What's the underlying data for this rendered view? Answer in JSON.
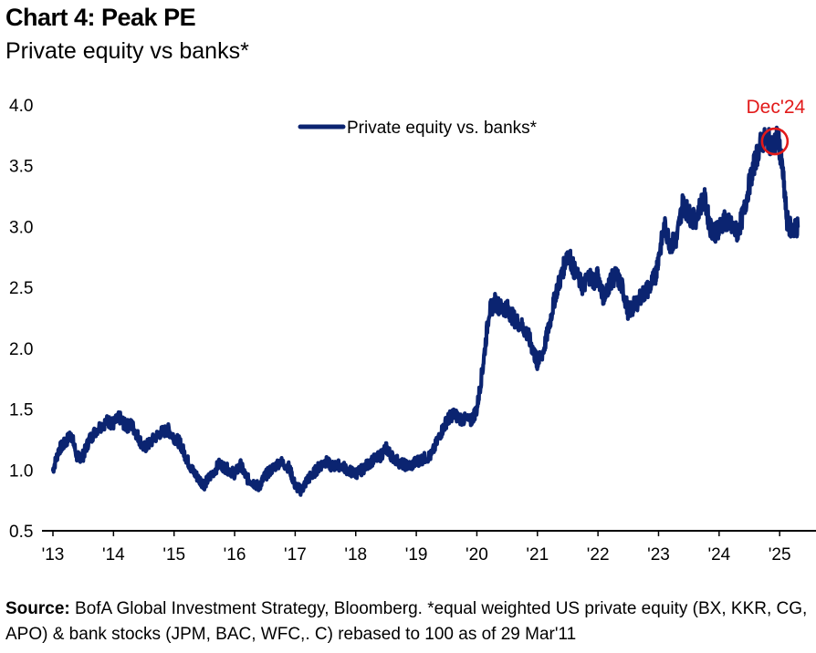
{
  "header": {
    "title": "Chart 4: Peak PE",
    "subtitle": "Private equity vs banks*"
  },
  "footer": {
    "source_label": "Source:",
    "source_text": "BofA Global Investment Strategy, Bloomberg. *equal weighted US private equity (BX, KKR, CG, APO) & bank stocks (JPM, BAC, WFC,. C) rebased to 100 as of 29 Mar'11"
  },
  "colors": {
    "series": "#0b2471",
    "annotation": "#e21a1a",
    "axis": "#000000"
  },
  "chart_data": {
    "type": "line",
    "title": "Chart 4: Peak PE",
    "subtitle": "Private equity vs banks*",
    "xlabel": "",
    "ylabel": "",
    "xlim": [
      2013.0,
      2025.6
    ],
    "ylim": [
      0.5,
      4.0
    ],
    "grid": false,
    "legend_position": "top-center",
    "x_ticks": [
      2013,
      2014,
      2015,
      2016,
      2017,
      2018,
      2019,
      2020,
      2021,
      2022,
      2023,
      2024,
      2025
    ],
    "x_tick_labels": [
      "'13",
      "'14",
      "'15",
      "'16",
      "'17",
      "'18",
      "'19",
      "'20",
      "'21",
      "'22",
      "'23",
      "'24",
      "'25"
    ],
    "y_ticks": [
      0.5,
      1.0,
      1.5,
      2.0,
      2.5,
      3.0,
      3.5,
      4.0
    ],
    "y_tick_labels": [
      "0.5",
      "1.0",
      "1.5",
      "2.0",
      "2.5",
      "3.0",
      "3.5",
      "4.0"
    ],
    "series": [
      {
        "name": "Private equity vs. banks*",
        "x": [
          2013.0,
          2013.1,
          2013.2,
          2013.3,
          2013.4,
          2013.5,
          2013.6,
          2013.75,
          2013.9,
          2014.0,
          2014.1,
          2014.2,
          2014.3,
          2014.4,
          2014.5,
          2014.6,
          2014.75,
          2014.9,
          2015.0,
          2015.1,
          2015.2,
          2015.3,
          2015.4,
          2015.5,
          2015.6,
          2015.75,
          2015.9,
          2016.0,
          2016.1,
          2016.2,
          2016.3,
          2016.4,
          2016.5,
          2016.6,
          2016.75,
          2016.9,
          2017.0,
          2017.1,
          2017.2,
          2017.3,
          2017.4,
          2017.5,
          2017.6,
          2017.75,
          2017.9,
          2018.0,
          2018.1,
          2018.25,
          2018.4,
          2018.5,
          2018.6,
          2018.75,
          2018.9,
          2019.0,
          2019.1,
          2019.25,
          2019.4,
          2019.5,
          2019.6,
          2019.75,
          2019.9,
          2020.0,
          2020.1,
          2020.2,
          2020.3,
          2020.4,
          2020.5,
          2020.6,
          2020.75,
          2020.85,
          2020.95,
          2021.0,
          2021.1,
          2021.2,
          2021.3,
          2021.4,
          2021.5,
          2021.6,
          2021.75,
          2021.85,
          2021.95,
          2022.0,
          2022.1,
          2022.2,
          2022.3,
          2022.4,
          2022.5,
          2022.6,
          2022.75,
          2022.85,
          2022.95,
          2023.0,
          2023.1,
          2023.2,
          2023.3,
          2023.4,
          2023.5,
          2023.6,
          2023.75,
          2023.85,
          2023.95,
          2024.0,
          2024.1,
          2024.2,
          2024.3,
          2024.4,
          2024.5,
          2024.6,
          2024.7,
          2024.8,
          2024.9,
          2024.97,
          2025.05,
          2025.12,
          2025.2,
          2025.3
        ],
        "values": [
          1.0,
          1.17,
          1.22,
          1.3,
          1.1,
          1.12,
          1.25,
          1.35,
          1.4,
          1.38,
          1.43,
          1.36,
          1.37,
          1.28,
          1.18,
          1.22,
          1.3,
          1.33,
          1.27,
          1.22,
          1.1,
          1.0,
          0.93,
          0.88,
          0.95,
          1.05,
          1.0,
          0.97,
          1.04,
          0.93,
          0.9,
          0.86,
          0.95,
          1.0,
          1.07,
          1.02,
          0.87,
          0.83,
          0.92,
          0.97,
          1.03,
          1.07,
          1.03,
          1.04,
          0.99,
          0.97,
          1.0,
          1.07,
          1.11,
          1.18,
          1.11,
          1.05,
          1.03,
          1.07,
          1.09,
          1.12,
          1.3,
          1.4,
          1.46,
          1.42,
          1.4,
          1.5,
          1.85,
          2.3,
          2.38,
          2.33,
          2.33,
          2.25,
          2.18,
          2.1,
          1.95,
          1.87,
          1.98,
          2.2,
          2.45,
          2.6,
          2.8,
          2.65,
          2.5,
          2.6,
          2.55,
          2.6,
          2.4,
          2.55,
          2.6,
          2.5,
          2.3,
          2.35,
          2.45,
          2.5,
          2.6,
          2.75,
          3.0,
          2.85,
          2.9,
          3.2,
          3.1,
          3.05,
          3.25,
          3.0,
          2.95,
          3.0,
          3.05,
          3.0,
          2.95,
          3.1,
          3.35,
          3.55,
          3.7,
          3.72,
          3.65,
          3.75,
          3.45,
          3.05,
          2.97,
          3.0
        ]
      }
    ],
    "annotations": [
      {
        "label": "Dec'24",
        "x": 2024.92,
        "y": 3.7
      }
    ]
  }
}
